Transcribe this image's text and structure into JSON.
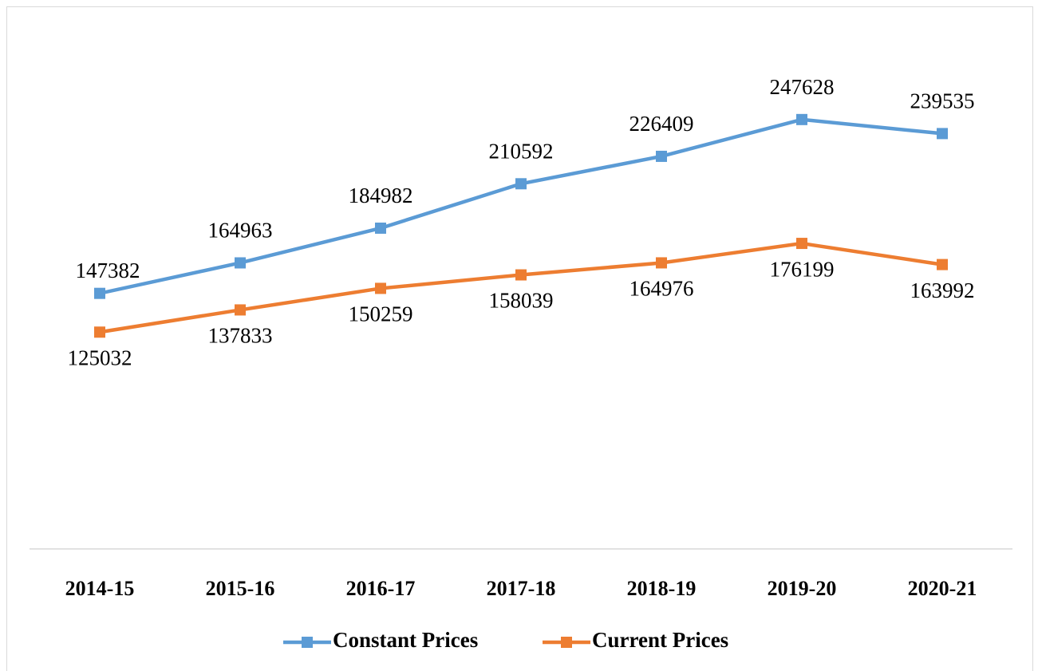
{
  "chart_data": {
    "type": "line",
    "categories": [
      "2014-15",
      "2015-16",
      "2016-17",
      "2017-18",
      "2018-19",
      "2019-20",
      "2020-21"
    ],
    "series": [
      {
        "name": "Constant Prices",
        "color": "#5b9bd5",
        "values": [
          147382,
          164963,
          184982,
          210592,
          226409,
          247628,
          239535
        ]
      },
      {
        "name": "Current Prices",
        "color": "#ed7d31",
        "values": [
          125032,
          137833,
          150259,
          158039,
          164976,
          176199,
          163992
        ]
      }
    ],
    "ylim": [
      0,
      300000
    ],
    "legend": "bottom"
  }
}
